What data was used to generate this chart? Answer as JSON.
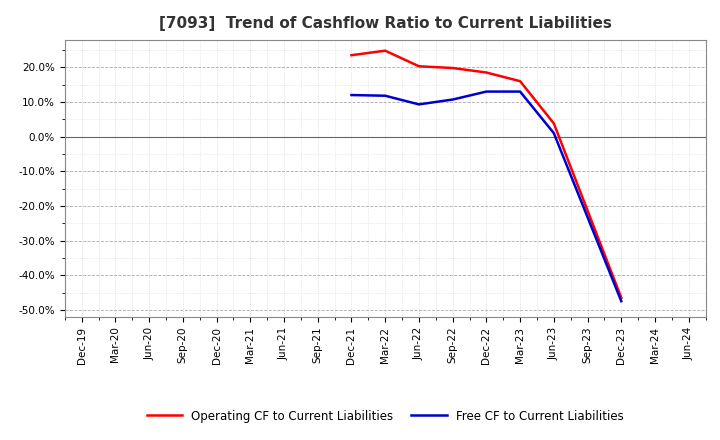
{
  "title": "[7093]  Trend of Cashflow Ratio to Current Liabilities",
  "x_labels": [
    "Dec-19",
    "Mar-20",
    "Jun-20",
    "Sep-20",
    "Dec-20",
    "Mar-21",
    "Jun-21",
    "Sep-21",
    "Dec-21",
    "Mar-22",
    "Jun-22",
    "Sep-22",
    "Dec-22",
    "Mar-23",
    "Jun-23",
    "Sep-23",
    "Dec-23",
    "Mar-24",
    "Jun-24"
  ],
  "operating_cf": [
    null,
    null,
    null,
    null,
    null,
    null,
    null,
    null,
    0.235,
    0.248,
    0.203,
    0.198,
    0.185,
    0.16,
    0.038,
    null,
    -0.465,
    null,
    null
  ],
  "free_cf": [
    null,
    null,
    null,
    null,
    null,
    null,
    null,
    null,
    0.12,
    0.118,
    0.093,
    0.107,
    0.13,
    0.13,
    0.01,
    null,
    -0.475,
    null,
    null
  ],
  "ylim": [
    -0.52,
    0.28
  ],
  "yticks": [
    -0.5,
    -0.4,
    -0.3,
    -0.2,
    -0.1,
    0.0,
    0.1,
    0.2
  ],
  "operating_color": "#ff0000",
  "free_color": "#0000cc",
  "background_color": "#ffffff",
  "plot_bg_color": "#f0f0f0",
  "major_grid_color": "#aaaaaa",
  "minor_grid_color": "#cccccc",
  "title_fontsize": 11,
  "tick_fontsize": 7.5,
  "legend_operating": "Operating CF to Current Liabilities",
  "legend_free": "Free CF to Current Liabilities"
}
